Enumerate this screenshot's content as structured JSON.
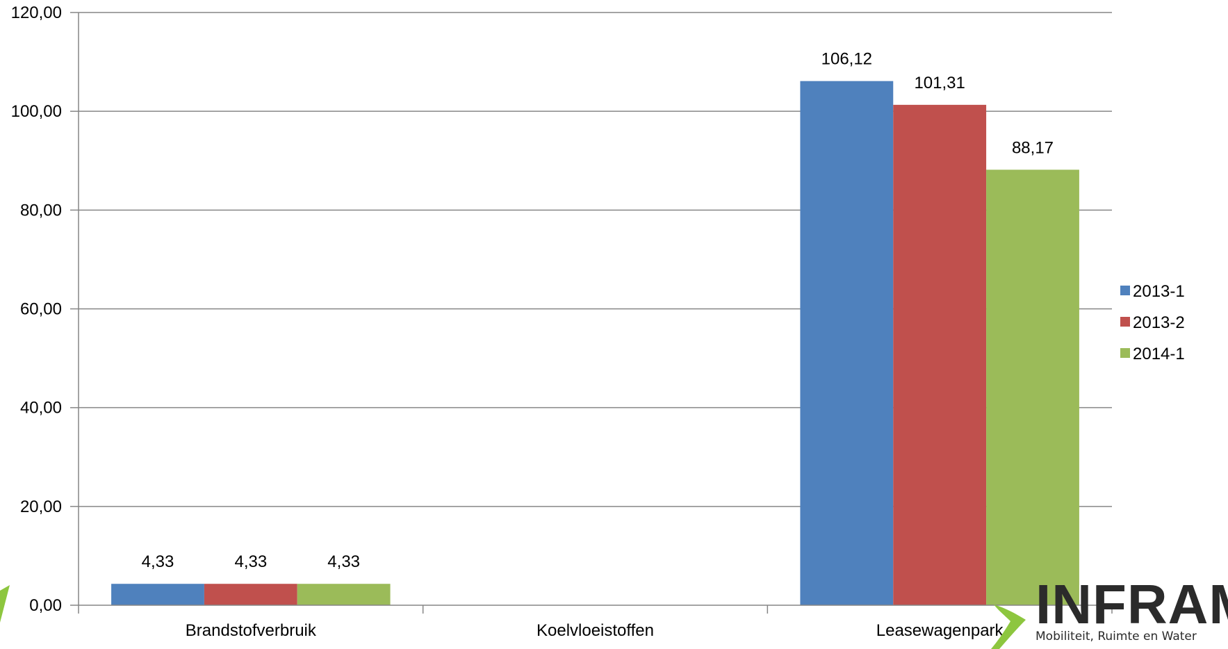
{
  "chart_data": {
    "type": "bar",
    "categories": [
      "Brandstofverbruik",
      "Koelvloeistoffen",
      "Leasewagenpark"
    ],
    "series": [
      {
        "name": "2013-1",
        "color": "#4F81BD",
        "values": [
          4.33,
          0,
          106.12
        ],
        "labels": [
          "4,33",
          "",
          "106,12"
        ]
      },
      {
        "name": "2013-2",
        "color": "#C0504D",
        "values": [
          4.33,
          0,
          101.31
        ],
        "labels": [
          "4,33",
          "",
          "101,31"
        ]
      },
      {
        "name": "2014-1",
        "color": "#9BBB59",
        "values": [
          4.33,
          0,
          88.17
        ],
        "labels": [
          "4,33",
          "",
          "88,17"
        ]
      }
    ],
    "ylim": [
      0,
      120
    ],
    "yticks": [
      0,
      20,
      40,
      60,
      80,
      100,
      120
    ],
    "ytick_labels": [
      "0,00",
      "20,00",
      "40,00",
      "60,00",
      "80,00",
      "100,00",
      "120,00"
    ],
    "grid": true,
    "legend_position": "right"
  },
  "logo": {
    "title": "INFRAM",
    "subtitle": "Mobiliteit, Ruimte en Water",
    "accent_color": "#8DC63F"
  }
}
